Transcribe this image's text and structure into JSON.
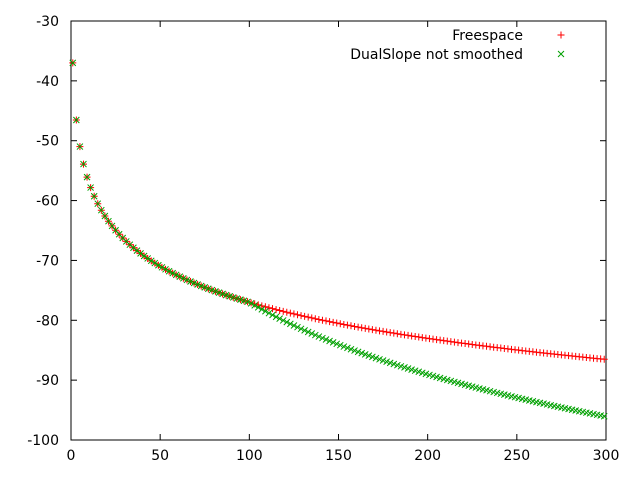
{
  "chart_data": {
    "type": "scatter",
    "title": "",
    "xlabel": "",
    "ylabel": "",
    "xlim": [
      0,
      300
    ],
    "ylim": [
      -100,
      -30
    ],
    "xticks": [
      0,
      50,
      100,
      150,
      200,
      250,
      300
    ],
    "yticks": [
      -100,
      -90,
      -80,
      -70,
      -60,
      -50,
      -40,
      -30
    ],
    "xtick_labels": [
      "0",
      "50",
      "100",
      "150",
      "200",
      "250",
      "300"
    ],
    "ytick_labels": [
      "-100",
      "-90",
      "-80",
      "-70",
      "-60",
      "-50",
      "-40",
      "-30"
    ],
    "grid": false,
    "legend_position": "top-right",
    "breakpoint_x": 100,
    "series": [
      {
        "name": "Freespace",
        "marker": "+",
        "color": "#ff0000",
        "x_range": [
          1,
          300
        ],
        "x_step": 2,
        "model": "y = -37 - 20*log10(x)",
        "sample_points": [
          [
            1,
            -37
          ],
          [
            10,
            -57
          ],
          [
            50,
            -71
          ],
          [
            100,
            -77
          ],
          [
            200,
            -83
          ],
          [
            300,
            -86.5
          ]
        ]
      },
      {
        "name": "DualSlope not smoothed",
        "marker": "x",
        "color": "#00a000",
        "x_range": [
          1,
          300
        ],
        "x_step": 2,
        "model": "y = -37 - 20*log10(x) for x <= 100; y = -77 - 40*log10(x/100) for x > 100",
        "sample_points": [
          [
            1,
            -37
          ],
          [
            10,
            -57
          ],
          [
            50,
            -71
          ],
          [
            100,
            -77
          ],
          [
            200,
            -89
          ],
          [
            300,
            -96
          ]
        ]
      }
    ]
  }
}
